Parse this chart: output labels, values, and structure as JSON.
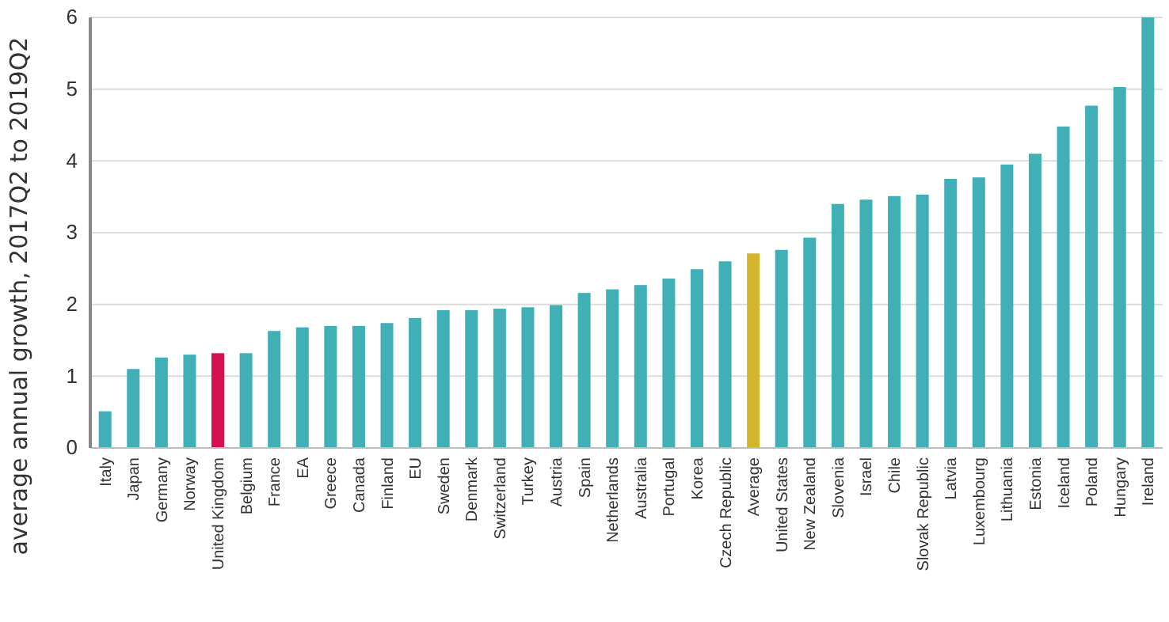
{
  "chart_data": {
    "type": "bar",
    "ylabel": "average annual growth, 2017Q2 to 2019Q2",
    "categories": [
      "Italy",
      "Japan",
      "Germany",
      "Norway",
      "United Kingdom",
      "Belgium",
      "France",
      "EA",
      "Greece",
      "Canada",
      "Finland",
      "EU",
      "Sweden",
      "Denmark",
      "Switzerland",
      "Turkey",
      "Austria",
      "Spain",
      "Netherlands",
      "Australia",
      "Portugal",
      "Korea",
      "Czech Republic",
      "Average",
      "United States",
      "New Zealand",
      "Slovenia",
      "Israel",
      "Chile",
      "Slovak Republic",
      "Latvia",
      "Luxembourg",
      "Lithuania",
      "Estonia",
      "Iceland",
      "Poland",
      "Hungary",
      "Ireland"
    ],
    "values": [
      0.51,
      1.1,
      1.26,
      1.3,
      1.32,
      1.32,
      1.63,
      1.68,
      1.7,
      1.7,
      1.74,
      1.81,
      1.92,
      1.92,
      1.94,
      1.96,
      1.99,
      2.16,
      2.21,
      2.27,
      2.36,
      2.49,
      2.6,
      2.71,
      2.76,
      2.93,
      3.4,
      3.46,
      3.51,
      3.53,
      3.75,
      3.77,
      3.95,
      4.1,
      4.48,
      4.77,
      5.03,
      6.0
    ],
    "colors": [
      "#40b0b6",
      "#40b0b6",
      "#40b0b6",
      "#40b0b6",
      "#d6114f",
      "#40b0b6",
      "#40b0b6",
      "#40b0b6",
      "#40b0b6",
      "#40b0b6",
      "#40b0b6",
      "#40b0b6",
      "#40b0b6",
      "#40b0b6",
      "#40b0b6",
      "#40b0b6",
      "#40b0b6",
      "#40b0b6",
      "#40b0b6",
      "#40b0b6",
      "#40b0b6",
      "#40b0b6",
      "#40b0b6",
      "#d4b52b",
      "#40b0b6",
      "#40b0b6",
      "#40b0b6",
      "#40b0b6",
      "#40b0b6",
      "#40b0b6",
      "#40b0b6",
      "#40b0b6",
      "#40b0b6",
      "#40b0b6",
      "#40b0b6",
      "#40b0b6",
      "#40b0b6",
      "#40b0b6"
    ],
    "ylim": [
      0,
      6
    ],
    "yticks": [
      0,
      1,
      2,
      3,
      4,
      5,
      6
    ],
    "grid": "y"
  }
}
